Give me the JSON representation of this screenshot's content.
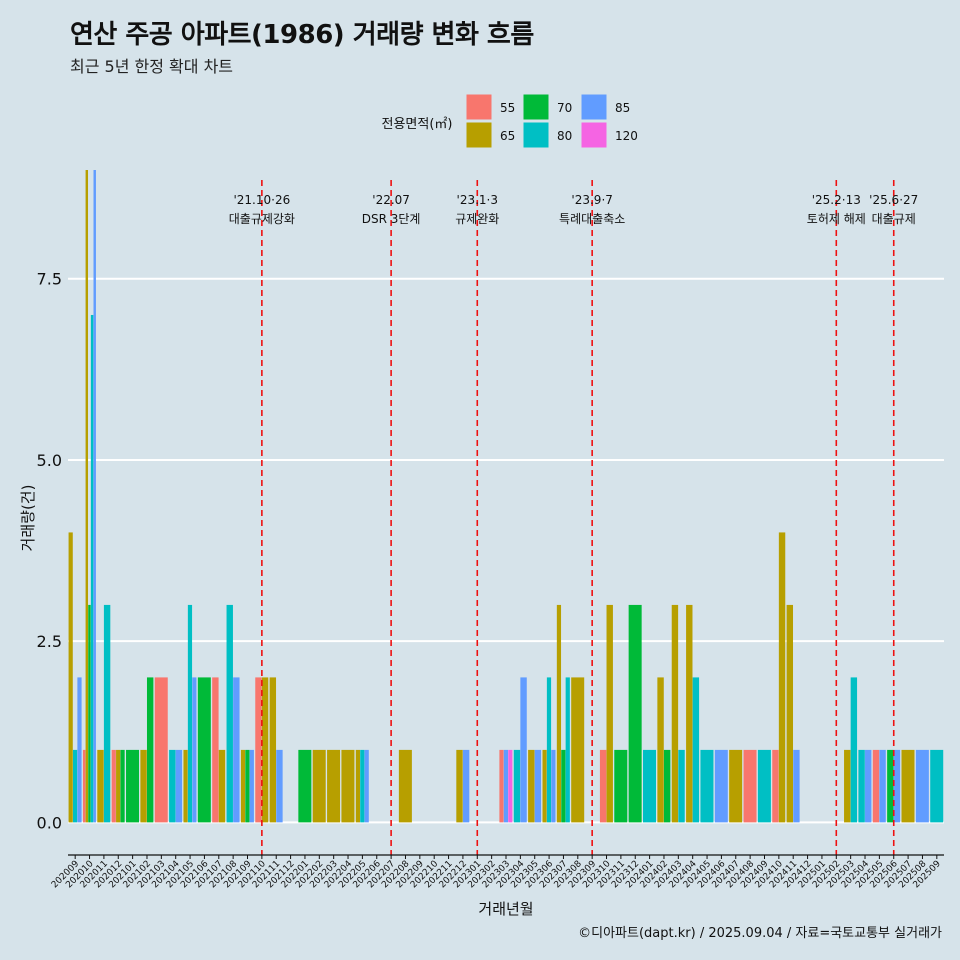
{
  "title": "연산 주공 아파트(1986) 거래량 변화 흐름",
  "subtitle": "최근 5년 한정 확대 차트",
  "caption": "©디아파트(dapt.kr) / 2025.09.04 / 자료=국토교통부 실거래가",
  "legend_title": "전용면적(㎡)",
  "colors": {
    "background": "#d6e3ea",
    "event_line": "#ee1111",
    "grid": "#ffffff"
  },
  "chart_data": {
    "type": "bar",
    "title": "연산 주공 아파트(1986) 거래량 변화 흐름",
    "xlabel": "거래년월",
    "ylabel": "거래량(건)",
    "ylim": [
      -0.45,
      9.0
    ],
    "yticks": [
      0.0,
      2.5,
      5.0,
      7.5
    ],
    "ytick_labels": [
      "0.0",
      "2.5",
      "5.0",
      "7.5"
    ],
    "categories": [
      "202009",
      "202010",
      "202011",
      "202012",
      "202101",
      "202102",
      "202103",
      "202104",
      "202105",
      "202106",
      "202107",
      "202108",
      "202109",
      "202110",
      "202111",
      "202112",
      "202201",
      "202202",
      "202203",
      "202204",
      "202205",
      "202206",
      "202207",
      "202208",
      "202209",
      "202210",
      "202211",
      "202212",
      "202301",
      "202302",
      "202303",
      "202304",
      "202305",
      "202306",
      "202307",
      "202308",
      "202309",
      "202310",
      "202311",
      "202312",
      "202401",
      "202402",
      "202403",
      "202404",
      "202405",
      "202406",
      "202407",
      "202408",
      "202409",
      "202410",
      "202411",
      "202412",
      "202501",
      "202502",
      "202503",
      "202504",
      "202505",
      "202506",
      "202507",
      "202508",
      "202509"
    ],
    "series": [
      {
        "name": "55",
        "color": "#f8766d"
      },
      {
        "name": "65",
        "color": "#b79f00"
      },
      {
        "name": "70",
        "color": "#00ba38"
      },
      {
        "name": "80",
        "color": "#00bfc4"
      },
      {
        "name": "85",
        "color": "#619cff"
      },
      {
        "name": "120",
        "color": "#f564e3"
      }
    ],
    "data": {
      "202009": [
        [
          "65",
          4
        ],
        [
          "80",
          1
        ],
        [
          "85",
          2
        ]
      ],
      "202010": [
        [
          "55",
          1
        ],
        [
          "65",
          9
        ],
        [
          "70",
          3
        ],
        [
          "80",
          7
        ],
        [
          "85",
          9
        ]
      ],
      "202011": [
        [
          "65",
          1
        ],
        [
          "80",
          3
        ]
      ],
      "202012": [
        [
          "55",
          1
        ],
        [
          "65",
          1
        ],
        [
          "70",
          1
        ]
      ],
      "202101": [
        [
          "70",
          1
        ]
      ],
      "202102": [
        [
          "65",
          1
        ],
        [
          "70",
          2
        ]
      ],
      "202103": [
        [
          "55",
          2
        ]
      ],
      "202104": [
        [
          "80",
          1
        ],
        [
          "85",
          1
        ]
      ],
      "202105": [
        [
          "65",
          1
        ],
        [
          "80",
          3
        ],
        [
          "85",
          2
        ]
      ],
      "202106": [
        [
          "70",
          2
        ]
      ],
      "202107": [
        [
          "55",
          2
        ],
        [
          "65",
          1
        ]
      ],
      "202108": [
        [
          "80",
          3
        ],
        [
          "85",
          2
        ]
      ],
      "202109": [
        [
          "65",
          1
        ],
        [
          "70",
          1
        ],
        [
          "85",
          1
        ]
      ],
      "202110": [
        [
          "55",
          2
        ],
        [
          "65",
          2
        ]
      ],
      "202111": [
        [
          "65",
          2
        ],
        [
          "85",
          1
        ]
      ],
      "202112": [],
      "202201": [
        [
          "70",
          1
        ]
      ],
      "202202": [
        [
          "65",
          1
        ]
      ],
      "202203": [
        [
          "65",
          1
        ]
      ],
      "202204": [
        [
          "65",
          1
        ]
      ],
      "202205": [
        [
          "65",
          1
        ],
        [
          "80",
          1
        ],
        [
          "85",
          1
        ]
      ],
      "202206": [],
      "202207": [],
      "202208": [
        [
          "65",
          1
        ]
      ],
      "202209": [],
      "202210": [],
      "202211": [],
      "202212": [
        [
          "65",
          1
        ],
        [
          "85",
          1
        ]
      ],
      "202301": [],
      "202302": [],
      "202303": [
        [
          "55",
          1
        ],
        [
          "85",
          1
        ],
        [
          "120",
          1
        ]
      ],
      "202304": [
        [
          "80",
          1
        ],
        [
          "85",
          2
        ]
      ],
      "202305": [
        [
          "65",
          1
        ],
        [
          "85",
          1
        ]
      ],
      "202306": [
        [
          "65",
          1
        ],
        [
          "80",
          2
        ],
        [
          "85",
          1
        ]
      ],
      "202307": [
        [
          "65",
          3
        ],
        [
          "70",
          1
        ],
        [
          "80",
          2
        ]
      ],
      "202308": [
        [
          "65",
          2
        ]
      ],
      "202309": [],
      "202310": [
        [
          "55",
          1
        ],
        [
          "65",
          3
        ]
      ],
      "202311": [
        [
          "70",
          1
        ]
      ],
      "202312": [
        [
          "70",
          3
        ]
      ],
      "202401": [
        [
          "80",
          1
        ]
      ],
      "202402": [
        [
          "65",
          2
        ],
        [
          "70",
          1
        ]
      ],
      "202403": [
        [
          "65",
          3
        ],
        [
          "80",
          1
        ]
      ],
      "202404": [
        [
          "65",
          3
        ],
        [
          "80",
          2
        ]
      ],
      "202405": [
        [
          "80",
          1
        ]
      ],
      "202406": [
        [
          "85",
          1
        ]
      ],
      "202407": [
        [
          "65",
          1
        ]
      ],
      "202408": [
        [
          "55",
          1
        ]
      ],
      "202409": [
        [
          "80",
          1
        ]
      ],
      "202410": [
        [
          "55",
          1
        ],
        [
          "65",
          4
        ]
      ],
      "202411": [
        [
          "65",
          3
        ],
        [
          "85",
          1
        ]
      ],
      "202412": [],
      "202501": [],
      "202502": [],
      "202503": [
        [
          "65",
          1
        ],
        [
          "80",
          2
        ]
      ],
      "202504": [
        [
          "80",
          1
        ],
        [
          "85",
          1
        ]
      ],
      "202505": [
        [
          "55",
          1
        ],
        [
          "85",
          1
        ]
      ],
      "202506": [
        [
          "70",
          1
        ],
        [
          "85",
          1
        ]
      ],
      "202507": [
        [
          "65",
          1
        ]
      ],
      "202508": [
        [
          "85",
          1
        ]
      ],
      "202509": [
        [
          "80",
          1
        ]
      ]
    },
    "events": [
      {
        "month": "202110",
        "date": "'21.10·26",
        "label": "대출규제강화"
      },
      {
        "month": "202207",
        "date": "'22.07",
        "label": "DSR 3단계"
      },
      {
        "month": "202301",
        "date": "'23.1·3",
        "label": "규제완화"
      },
      {
        "month": "202309",
        "date": "'23.9·7",
        "label": "특례대출축소"
      },
      {
        "month": "202502",
        "date": "'25.2·13",
        "label": "토허제 해제"
      },
      {
        "month": "202506",
        "date": "'25.6·27",
        "label": "대출규제"
      }
    ]
  }
}
